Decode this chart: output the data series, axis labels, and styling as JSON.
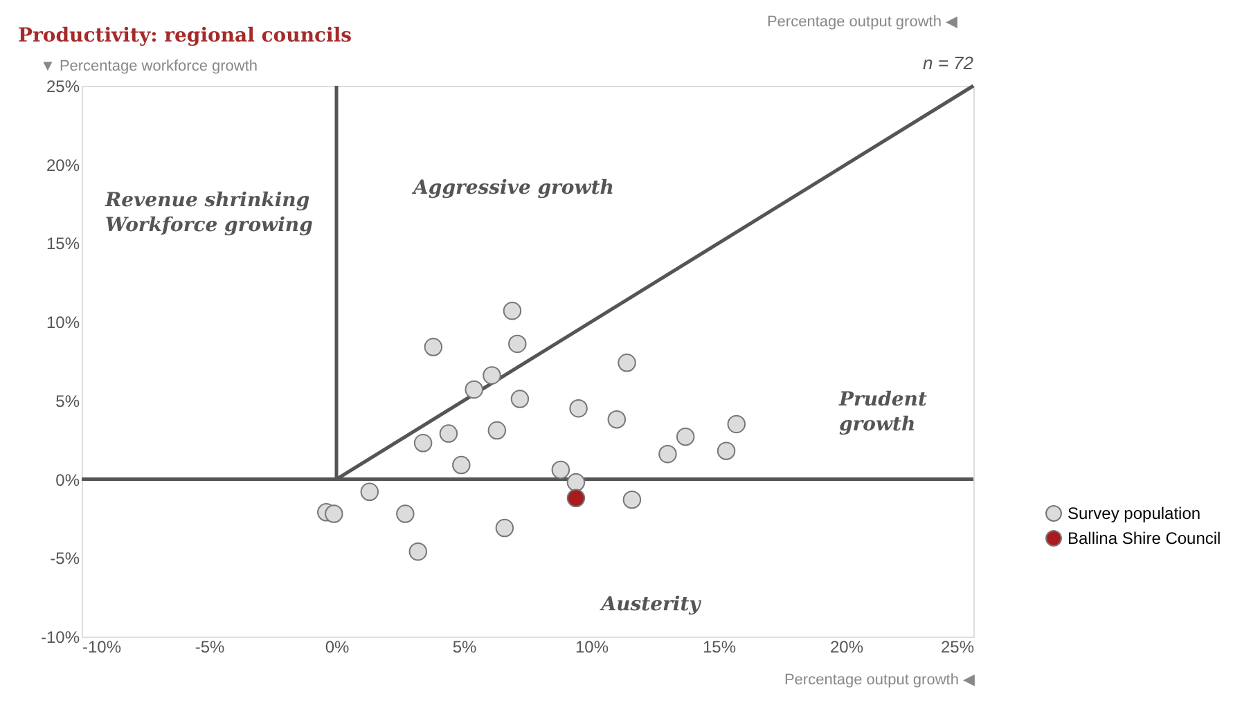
{
  "chart_data": {
    "type": "scatter",
    "title": "Productivity: regional councils",
    "xlabel": "Percentage output growth ◀",
    "ylabel": "▼ Percentage workforce growth",
    "xlim": [
      -10,
      25
    ],
    "ylim": [
      -10,
      25
    ],
    "xticks": [
      {
        "value": -10,
        "label": "-10%"
      },
      {
        "value": -5,
        "label": "-5%"
      },
      {
        "value": 0,
        "label": "0%"
      },
      {
        "value": 5,
        "label": "5%"
      },
      {
        "value": 10,
        "label": "10%"
      },
      {
        "value": 15,
        "label": "15%"
      },
      {
        "value": 20,
        "label": "20%"
      },
      {
        "value": 25,
        "label": "25%"
      }
    ],
    "yticks": [
      {
        "value": -10,
        "label": "-10%"
      },
      {
        "value": -5,
        "label": "-5%"
      },
      {
        "value": 0,
        "label": "0%"
      },
      {
        "value": 5,
        "label": "5%"
      },
      {
        "value": 10,
        "label": "10%"
      },
      {
        "value": 15,
        "label": "15%"
      },
      {
        "value": 20,
        "label": "20%"
      },
      {
        "value": 25,
        "label": "25%"
      }
    ],
    "grid": false,
    "legend": "right",
    "marker": "circle",
    "ref_lines": [
      {
        "axis": "y",
        "value": 0,
        "color": "#555555"
      }
    ],
    "series": [
      {
        "name": "Survey population",
        "color": "#dcdcdc",
        "x": [
          3.8,
          6.9,
          7.1,
          6.1,
          5.4,
          7.2,
          11.4,
          9.5,
          11.0,
          3.4,
          4.4,
          6.3,
          4.9,
          13.7,
          13.0,
          15.7,
          15.3,
          8.8,
          9.4,
          11.6,
          1.3,
          -0.4,
          -0.1,
          2.7,
          6.6,
          3.2
        ],
        "values": [
          8.4,
          10.7,
          8.6,
          6.6,
          5.7,
          5.1,
          7.4,
          4.5,
          3.8,
          2.3,
          2.9,
          3.1,
          0.9,
          2.7,
          1.6,
          3.5,
          1.8,
          0.6,
          -0.2,
          -1.3,
          -0.8,
          -2.1,
          -2.2,
          -2.2,
          -3.1,
          -4.6
        ]
      },
      {
        "name": "Ballina Shire Council",
        "color": "#a81c1f",
        "x": [
          9.4
        ],
        "values": [
          -1.2
        ]
      },
      {
        "type": "line",
        "color": "#555555",
        "marker": "none",
        "x": [
          0,
          0,
          25
        ],
        "values": [
          25,
          0,
          25
        ]
      }
    ],
    "annotations": [
      "Revenue shrinking\nWorkforce growing",
      "Aggressive growth",
      "Prudent\ngrowth",
      "Austerity",
      "n = 72",
      "Percentage output growth ◀"
    ]
  }
}
